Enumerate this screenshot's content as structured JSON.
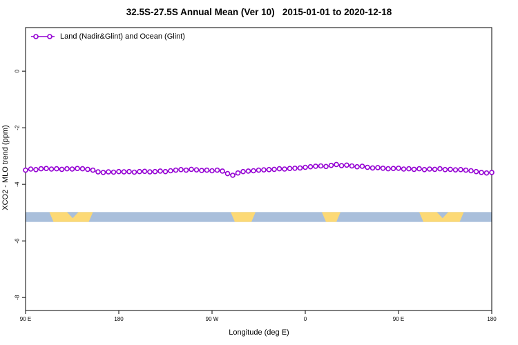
{
  "chart_data": {
    "type": "line",
    "title": "32.5S-27.5S Annual Mean (Ver 10)   2015-01-01 to 2020-12-18",
    "xlabel": "Longitude (deg E)",
    "ylabel": "XCO2 - MLO trend (ppm)",
    "xlim": [
      90,
      540
    ],
    "ylim": [
      -8.46,
      1.54
    ],
    "grid": false,
    "legend_position": "top-left",
    "x_ticks": [
      {
        "value": 90,
        "label": "90 E"
      },
      {
        "value": 180,
        "label": "180"
      },
      {
        "value": 270,
        "label": "90 W"
      },
      {
        "value": 360,
        "label": "0"
      },
      {
        "value": 450,
        "label": "90 E"
      },
      {
        "value": 540,
        "label": "180"
      }
    ],
    "y_ticks": [
      {
        "value": 0,
        "label": "0"
      },
      {
        "value": -2,
        "label": "-2"
      },
      {
        "value": -4,
        "label": "-4"
      },
      {
        "value": -6,
        "label": "-6"
      },
      {
        "value": -8,
        "label": "-8"
      }
    ],
    "series": [
      {
        "name": "Land (Nadir&Glint) and Ocean (Glint)",
        "color": "#9400D3",
        "marker": "open-circle",
        "x": [
          90,
          95,
          100,
          105,
          110,
          115,
          120,
          125,
          130,
          135,
          140,
          145,
          150,
          155,
          160,
          165,
          170,
          175,
          180,
          185,
          190,
          195,
          200,
          205,
          210,
          215,
          220,
          225,
          230,
          235,
          240,
          245,
          250,
          255,
          260,
          265,
          270,
          275,
          280,
          285,
          290,
          295,
          300,
          305,
          310,
          315,
          320,
          325,
          330,
          335,
          340,
          345,
          350,
          355,
          360,
          365,
          370,
          375,
          380,
          385,
          390,
          395,
          400,
          405,
          410,
          415,
          420,
          425,
          430,
          435,
          440,
          445,
          450,
          455,
          460,
          465,
          470,
          475,
          480,
          485,
          490,
          495,
          500,
          505,
          510,
          515,
          520,
          525,
          530,
          535,
          540
        ],
        "y": [
          -3.5,
          -3.46,
          -3.48,
          -3.45,
          -3.44,
          -3.46,
          -3.45,
          -3.47,
          -3.45,
          -3.46,
          -3.44,
          -3.45,
          -3.47,
          -3.5,
          -3.56,
          -3.58,
          -3.56,
          -3.57,
          -3.55,
          -3.56,
          -3.55,
          -3.57,
          -3.55,
          -3.54,
          -3.56,
          -3.55,
          -3.53,
          -3.55,
          -3.52,
          -3.5,
          -3.48,
          -3.5,
          -3.47,
          -3.49,
          -3.51,
          -3.5,
          -3.52,
          -3.5,
          -3.53,
          -3.62,
          -3.68,
          -3.6,
          -3.55,
          -3.53,
          -3.52,
          -3.5,
          -3.49,
          -3.48,
          -3.47,
          -3.45,
          -3.46,
          -3.44,
          -3.43,
          -3.42,
          -3.4,
          -3.38,
          -3.36,
          -3.35,
          -3.37,
          -3.33,
          -3.3,
          -3.34,
          -3.32,
          -3.35,
          -3.38,
          -3.36,
          -3.4,
          -3.42,
          -3.41,
          -3.43,
          -3.45,
          -3.44,
          -3.43,
          -3.46,
          -3.45,
          -3.47,
          -3.45,
          -3.48,
          -3.46,
          -3.47,
          -3.45,
          -3.48,
          -3.47,
          -3.49,
          -3.48,
          -3.5,
          -3.52,
          -3.55,
          -3.58,
          -3.6,
          -3.58
        ]
      }
    ],
    "land_ocean_band": {
      "y_top": -4.98,
      "y_bottom": -5.33,
      "ocean_color": "#A9BFDB",
      "land_color": "#FCD975",
      "land_segments": [
        [
          113,
          155
        ],
        [
          288,
          312
        ],
        [
          376,
          394
        ],
        [
          470,
          513
        ]
      ],
      "notches": [
        [
          130,
          141
        ],
        [
          487,
          498
        ]
      ]
    }
  }
}
